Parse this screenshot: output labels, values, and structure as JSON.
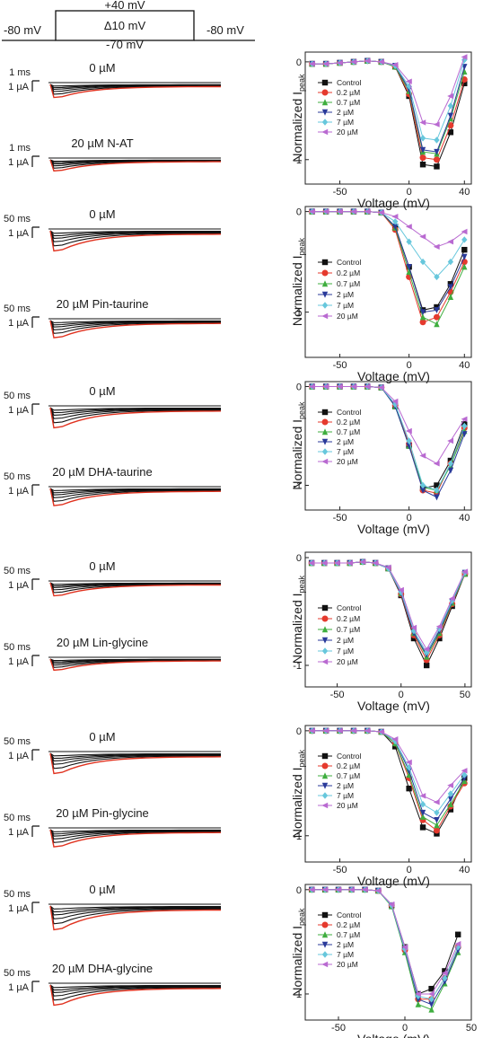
{
  "protocol": {
    "hold_left": "-80 mV",
    "hold_right": "-80 mV",
    "top": "+40 mV",
    "step": "Δ10 mV",
    "bottom": "-70 mV"
  },
  "units": {
    "micro_A": "1 µA"
  },
  "rows": [
    {
      "time_scale": "1 ms",
      "label_ctrl": "0 µM",
      "label_drug": "20 µM N-AT"
    },
    {
      "time_scale": "50 ms",
      "label_ctrl": "0 µM",
      "label_drug": "20 µM Pin-taurine"
    },
    {
      "time_scale": "50 ms",
      "label_ctrl": "0 µM",
      "label_drug": "20 µM DHA-taurine"
    },
    {
      "time_scale": "50 ms",
      "label_ctrl": "0 µM",
      "label_drug": "20 µM Lin-glycine"
    },
    {
      "time_scale": "50 ms",
      "label_ctrl": "0 µM",
      "label_drug": "20 µM Pin-glycine"
    },
    {
      "time_scale": "50 ms",
      "label_ctrl": "0 µM",
      "label_drug": "20 µM DHA-glycine"
    }
  ],
  "colors": {
    "Control": "#111111",
    "0.2 µM": "#e53a2e",
    "0.7 µM": "#3fae3f",
    "2 µM": "#2a3a9a",
    "7 µM": "#67c7dc",
    "20 µM": "#b96ad1",
    "trace_red": "#e0321f"
  },
  "chart_data": [
    {
      "type": "line",
      "xlabel": "Voltage (mV)",
      "ylabel": "Normalized I",
      "ylabel_sub": "peak",
      "xlim": [
        -75,
        45
      ],
      "ylim": [
        -1.25,
        0.1
      ],
      "xticks": [
        -50,
        0,
        40
      ],
      "yticks": [
        0,
        -1
      ],
      "x": [
        -70,
        -60,
        -50,
        -40,
        -30,
        -20,
        -10,
        0,
        10,
        20,
        30,
        40
      ],
      "series": [
        {
          "name": "Control",
          "values": [
            -0.02,
            -0.02,
            -0.01,
            0.0,
            0.01,
            0.0,
            -0.05,
            -0.35,
            -1.05,
            -1.07,
            -0.72,
            -0.22
          ]
        },
        {
          "name": "0.2 µM",
          "values": [
            -0.02,
            -0.02,
            -0.01,
            0.0,
            0.01,
            0.0,
            -0.05,
            -0.33,
            -0.98,
            -1.0,
            -0.65,
            -0.18
          ]
        },
        {
          "name": "0.7 µM",
          "values": [
            -0.02,
            -0.02,
            -0.01,
            0.0,
            0.01,
            0.0,
            -0.05,
            -0.3,
            -0.92,
            -0.94,
            -0.58,
            -0.1
          ]
        },
        {
          "name": "2 µM",
          "values": [
            -0.02,
            -0.02,
            -0.01,
            0.0,
            0.01,
            0.0,
            -0.04,
            -0.28,
            -0.9,
            -0.92,
            -0.55,
            -0.05
          ]
        },
        {
          "name": "7 µM",
          "values": [
            -0.02,
            -0.02,
            -0.01,
            0.0,
            0.01,
            0.0,
            -0.04,
            -0.25,
            -0.78,
            -0.8,
            -0.45,
            0.02
          ]
        },
        {
          "name": "20 µM",
          "values": [
            -0.02,
            -0.02,
            -0.01,
            0.0,
            0.01,
            0.0,
            -0.03,
            -0.2,
            -0.62,
            -0.64,
            -0.35,
            0.05
          ]
        }
      ]
    },
    {
      "type": "line",
      "xlabel": "Voltage (mV)",
      "ylabel": "Normalized I",
      "ylabel_sub": "peak",
      "xlim": [
        -75,
        45
      ],
      "ylim": [
        -1.45,
        0.05
      ],
      "xticks": [
        -50,
        0,
        40
      ],
      "yticks": [
        0,
        -1
      ],
      "x": [
        -70,
        -60,
        -50,
        -40,
        -30,
        -20,
        -10,
        0,
        10,
        20,
        30,
        40
      ],
      "series": [
        {
          "name": "Control",
          "values": [
            0.0,
            0.0,
            0.0,
            0.0,
            0.0,
            -0.01,
            -0.15,
            -0.55,
            -0.98,
            -0.95,
            -0.72,
            -0.38
          ]
        },
        {
          "name": "0.2 µM",
          "values": [
            0.0,
            0.0,
            0.0,
            0.0,
            0.0,
            -0.01,
            -0.18,
            -0.65,
            -1.1,
            -1.05,
            -0.8,
            -0.5
          ]
        },
        {
          "name": "0.7 µM",
          "values": [
            0.0,
            0.0,
            0.0,
            0.0,
            0.0,
            -0.01,
            -0.16,
            -0.6,
            -1.05,
            -1.12,
            -0.85,
            -0.55
          ]
        },
        {
          "name": "2 µM",
          "values": [
            0.0,
            0.0,
            0.0,
            0.0,
            0.0,
            -0.01,
            -0.15,
            -0.55,
            -1.0,
            -0.98,
            -0.75,
            -0.45
          ]
        },
        {
          "name": "7 µM",
          "values": [
            0.0,
            0.0,
            0.0,
            0.0,
            0.0,
            -0.01,
            -0.1,
            -0.3,
            -0.5,
            -0.65,
            -0.5,
            -0.28
          ]
        },
        {
          "name": "20 µM",
          "values": [
            0.0,
            0.0,
            0.0,
            0.0,
            0.0,
            -0.01,
            -0.05,
            -0.15,
            -0.25,
            -0.35,
            -0.3,
            -0.2
          ]
        }
      ]
    },
    {
      "type": "line",
      "xlabel": "Voltage (mV)",
      "ylabel": "Normalized I",
      "ylabel_sub": "peak",
      "xlim": [
        -75,
        45
      ],
      "ylim": [
        -1.25,
        0.05
      ],
      "xticks": [
        -50,
        0,
        40
      ],
      "yticks": [
        0,
        -1
      ],
      "x": [
        -70,
        -60,
        -50,
        -40,
        -30,
        -20,
        -10,
        0,
        10,
        20,
        30,
        40
      ],
      "series": [
        {
          "name": "Control",
          "values": [
            0.0,
            0.0,
            0.0,
            0.0,
            0.0,
            -0.01,
            -0.2,
            -0.6,
            -1.03,
            -1.0,
            -0.75,
            -0.38
          ]
        },
        {
          "name": "0.2 µM",
          "values": [
            0.0,
            0.0,
            0.0,
            0.0,
            0.0,
            -0.01,
            -0.19,
            -0.58,
            -1.05,
            -1.08,
            -0.78,
            -0.42
          ]
        },
        {
          "name": "0.7 µM",
          "values": [
            0.0,
            0.0,
            0.0,
            0.0,
            0.0,
            -0.01,
            -0.2,
            -0.6,
            -1.02,
            -1.05,
            -0.8,
            -0.45
          ]
        },
        {
          "name": "2 µM",
          "values": [
            0.0,
            0.0,
            0.0,
            0.0,
            0.0,
            -0.01,
            -0.2,
            -0.6,
            -1.05,
            -1.12,
            -0.85,
            -0.48
          ]
        },
        {
          "name": "7 µM",
          "values": [
            0.0,
            0.0,
            0.0,
            0.0,
            0.0,
            -0.01,
            -0.18,
            -0.55,
            -1.0,
            -1.05,
            -0.78,
            -0.4
          ]
        },
        {
          "name": "20 µM",
          "values": [
            0.0,
            0.0,
            0.0,
            0.0,
            0.0,
            -0.01,
            -0.15,
            -0.45,
            -0.7,
            -0.78,
            -0.55,
            -0.33
          ]
        }
      ]
    },
    {
      "type": "line",
      "xlabel": "Voltage (mV)",
      "ylabel": "Normalized I",
      "ylabel_sub": "peak",
      "xlim": [
        -75,
        55
      ],
      "ylim": [
        -1.2,
        0.05
      ],
      "xticks": [
        -50,
        0,
        50
      ],
      "yticks": [
        0,
        -1
      ],
      "x": [
        -70,
        -60,
        -50,
        -40,
        -30,
        -20,
        -10,
        0,
        10,
        20,
        30,
        40,
        50
      ],
      "series": [
        {
          "name": "Control",
          "values": [
            -0.05,
            -0.05,
            -0.05,
            -0.05,
            -0.04,
            -0.05,
            -0.1,
            -0.35,
            -0.75,
            -1.0,
            -0.75,
            -0.45,
            -0.15
          ]
        },
        {
          "name": "0.2 µM",
          "values": [
            -0.05,
            -0.05,
            -0.05,
            -0.05,
            -0.04,
            -0.05,
            -0.1,
            -0.34,
            -0.72,
            -0.95,
            -0.72,
            -0.43,
            -0.15
          ]
        },
        {
          "name": "0.7 µM",
          "values": [
            -0.05,
            -0.05,
            -0.05,
            -0.05,
            -0.04,
            -0.05,
            -0.1,
            -0.33,
            -0.7,
            -0.92,
            -0.7,
            -0.42,
            -0.15
          ]
        },
        {
          "name": "2 µM",
          "values": [
            -0.05,
            -0.05,
            -0.05,
            -0.05,
            -0.04,
            -0.05,
            -0.1,
            -0.33,
            -0.7,
            -0.9,
            -0.68,
            -0.41,
            -0.14
          ]
        },
        {
          "name": "7 µM",
          "values": [
            -0.05,
            -0.05,
            -0.05,
            -0.05,
            -0.04,
            -0.05,
            -0.1,
            -0.32,
            -0.68,
            -0.88,
            -0.66,
            -0.4,
            -0.14
          ]
        },
        {
          "name": "20 µM",
          "values": [
            -0.05,
            -0.05,
            -0.05,
            -0.05,
            -0.04,
            -0.05,
            -0.09,
            -0.3,
            -0.65,
            -0.85,
            -0.64,
            -0.38,
            -0.13
          ]
        }
      ]
    },
    {
      "type": "line",
      "xlabel": "Voltage (mV)",
      "ylabel": "Normalized I",
      "ylabel_sub": "peak",
      "xlim": [
        -75,
        45
      ],
      "ylim": [
        -1.25,
        0.05
      ],
      "xticks": [
        -50,
        0,
        40
      ],
      "yticks": [
        0,
        -1
      ],
      "x": [
        -70,
        -60,
        -50,
        -40,
        -30,
        -20,
        -10,
        0,
        10,
        20,
        30,
        40
      ],
      "series": [
        {
          "name": "Control",
          "values": [
            0.0,
            0.0,
            0.0,
            0.0,
            0.0,
            -0.01,
            -0.15,
            -0.55,
            -0.92,
            -0.98,
            -0.75,
            -0.45
          ]
        },
        {
          "name": "0.2 µM",
          "values": [
            0.0,
            0.0,
            0.0,
            0.0,
            0.0,
            -0.01,
            -0.12,
            -0.45,
            -0.85,
            -0.95,
            -0.72,
            -0.5
          ]
        },
        {
          "name": "0.7 µM",
          "values": [
            0.0,
            0.0,
            0.0,
            0.0,
            0.0,
            -0.01,
            -0.12,
            -0.42,
            -0.82,
            -0.9,
            -0.7,
            -0.48
          ]
        },
        {
          "name": "2 µM",
          "values": [
            0.0,
            0.0,
            0.0,
            0.0,
            0.0,
            -0.01,
            -0.1,
            -0.38,
            -0.78,
            -0.85,
            -0.65,
            -0.45
          ]
        },
        {
          "name": "7 µM",
          "values": [
            0.0,
            0.0,
            0.0,
            0.0,
            0.0,
            -0.01,
            -0.1,
            -0.35,
            -0.7,
            -0.78,
            -0.6,
            -0.42
          ]
        },
        {
          "name": "20 µM",
          "values": [
            0.0,
            0.0,
            0.0,
            0.0,
            0.0,
            -0.01,
            -0.08,
            -0.3,
            -0.62,
            -0.68,
            -0.52,
            -0.38
          ]
        }
      ]
    },
    {
      "type": "line",
      "xlabel": "Voltage (mV)",
      "ylabel": "Normalized I",
      "ylabel_sub": "peak",
      "xlim": [
        -75,
        50
      ],
      "ylim": [
        -1.25,
        0.05
      ],
      "xticks": [
        -50,
        0,
        50
      ],
      "yticks": [
        0,
        -1
      ],
      "x": [
        -70,
        -60,
        -50,
        -40,
        -30,
        -20,
        -10,
        0,
        10,
        20,
        30,
        40
      ],
      "series": [
        {
          "name": "Control",
          "values": [
            0.0,
            0.0,
            0.0,
            0.0,
            0.0,
            -0.01,
            -0.15,
            -0.55,
            -1.0,
            -0.95,
            -0.78,
            -0.43
          ]
        },
        {
          "name": "0.2 µM",
          "values": [
            0.0,
            0.0,
            0.0,
            0.0,
            0.0,
            -0.01,
            -0.15,
            -0.58,
            -1.05,
            -1.05,
            -0.85,
            -0.55
          ]
        },
        {
          "name": "0.7 µM",
          "values": [
            0.0,
            0.0,
            0.0,
            0.0,
            0.0,
            -0.01,
            -0.16,
            -0.6,
            -1.1,
            -1.15,
            -0.9,
            -0.6
          ]
        },
        {
          "name": "2 µM",
          "values": [
            0.0,
            0.0,
            0.0,
            0.0,
            0.0,
            -0.01,
            -0.15,
            -0.58,
            -1.05,
            -1.1,
            -0.88,
            -0.58
          ]
        },
        {
          "name": "7 µM",
          "values": [
            0.0,
            0.0,
            0.0,
            0.0,
            0.0,
            -0.01,
            -0.15,
            -0.57,
            -1.02,
            -1.05,
            -0.85,
            -0.55
          ]
        },
        {
          "name": "20 µM",
          "values": [
            0.0,
            0.0,
            0.0,
            0.0,
            0.0,
            -0.01,
            -0.14,
            -0.55,
            -1.0,
            -1.0,
            -0.8,
            -0.52
          ]
        }
      ]
    }
  ]
}
